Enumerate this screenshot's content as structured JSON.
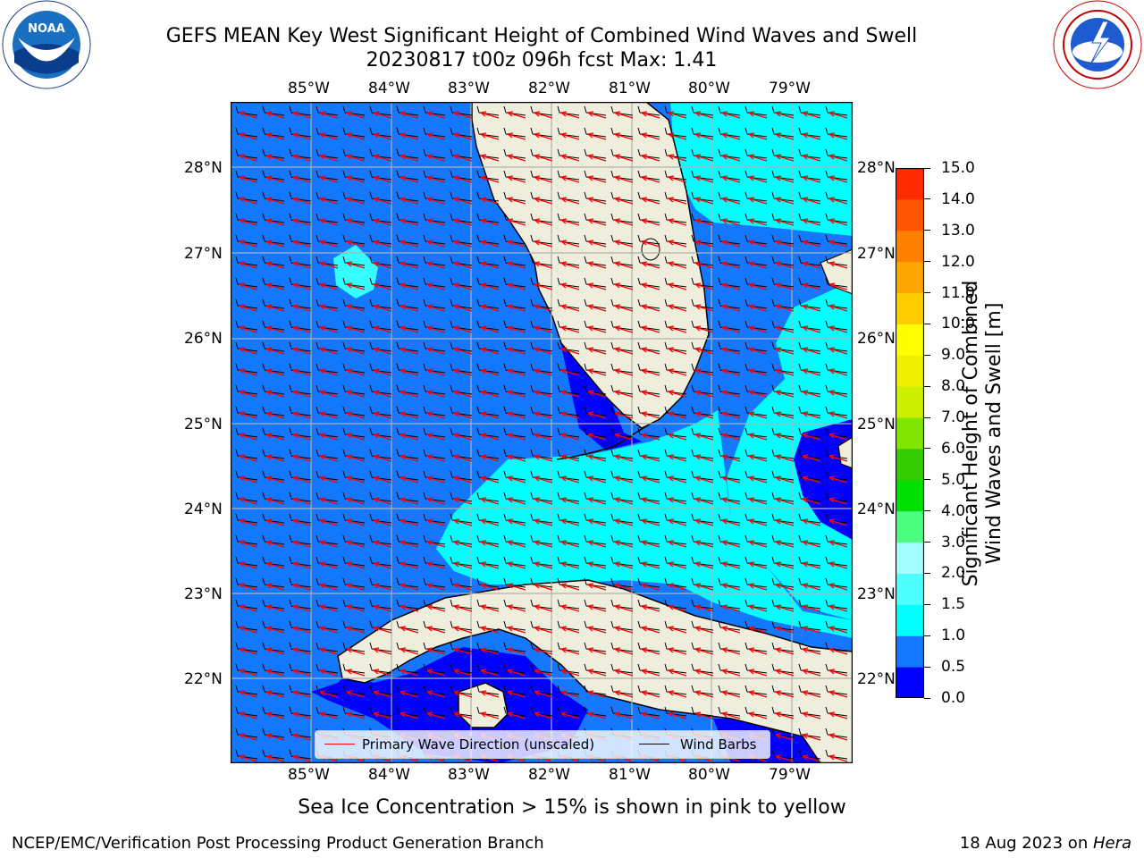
{
  "title": {
    "line1": "GEFS MEAN Key West Significant Height of Combined Wind Waves and Swell",
    "line2": "20230817 t00z 096h fcst   Max: 1.41"
  },
  "logos": {
    "left": {
      "name": "NOAA",
      "ring_text": "NATIONAL OCEANIC AND ATMOSPHERIC ADMINISTRATION · U.S. DEPARTMENT OF COMMERCE"
    },
    "right": {
      "name": "NATIONAL WEATHER SERVICE"
    }
  },
  "map": {
    "lon_labels": [
      "85°W",
      "84°W",
      "83°W",
      "82°W",
      "81°W",
      "80°W",
      "79°W"
    ],
    "lat_labels": [
      "28°N",
      "27°N",
      "26°N",
      "25°N",
      "24°N",
      "23°N",
      "22°N"
    ],
    "extent": {
      "lon": [
        -86.0,
        -78.3
      ],
      "lat": [
        21.1,
        28.8
      ]
    },
    "colors": {
      "ocean_mid": "#1478ff",
      "ocean_low": "#0000ff",
      "ocean_high": "#00ffff",
      "ocean_highmid": "#33ffff",
      "land": "#efeddc",
      "grid": "#b0b0b0",
      "wave_arrow": "#ff0000",
      "barb": "#000000"
    }
  },
  "legend": {
    "wave_label": "Primary Wave Direction (unscaled)",
    "barb_label": "Wind Barbs"
  },
  "colorbar": {
    "label_line1": "Significant Height of Combined",
    "label_line2": "Wind Waves and Swell [m]",
    "ticks": [
      "0.0",
      "0.5",
      "1.0",
      "1.5",
      "2.0",
      "3.0",
      "4.0",
      "5.0",
      "6.0",
      "7.0",
      "8.0",
      "9.0",
      "10.0",
      "11.0",
      "12.0",
      "13.0",
      "14.0",
      "15.0"
    ],
    "colors": [
      "#0000ff",
      "#1478ff",
      "#00ffff",
      "#4dffff",
      "#a6ffff",
      "#4dff80",
      "#00e000",
      "#33cc00",
      "#80e600",
      "#ccf000",
      "#f0f000",
      "#ffff00",
      "#ffcc00",
      "#ffa600",
      "#ff8000",
      "#ff5500",
      "#ff2a00"
    ]
  },
  "bottom_note": "Sea Ice Concentration > 15% is shown in pink to yellow",
  "footer": {
    "left": "NCEP/EMC/Verification Post Processing Product Generation Branch",
    "right_prefix": "18 Aug 2023 on ",
    "right_machine": "Hera"
  }
}
